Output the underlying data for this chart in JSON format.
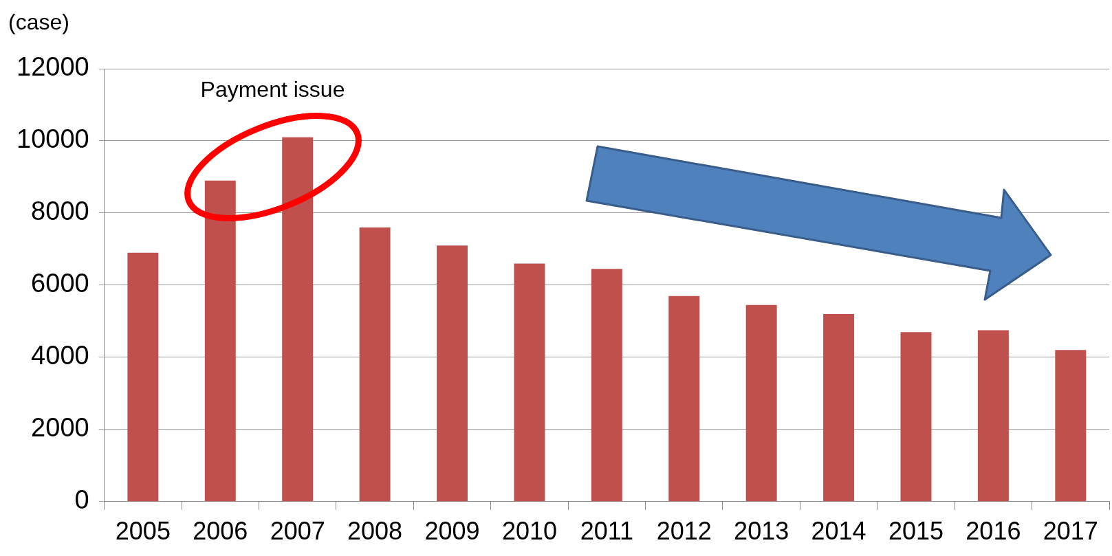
{
  "chart_data": {
    "type": "bar",
    "ylabel": "(case)",
    "annotations": [
      "Payment issue"
    ],
    "categories": [
      "2005",
      "2006",
      "2007",
      "2008",
      "2009",
      "2010",
      "2011",
      "2012",
      "2013",
      "2014",
      "2015",
      "2016",
      "2017"
    ],
    "values": [
      6900,
      8900,
      10100,
      7600,
      7100,
      6600,
      6450,
      5700,
      5450,
      5200,
      4700,
      4750,
      4200
    ],
    "color": "#c0504d",
    "ylim": [
      0,
      12000
    ],
    "yticks": [
      0,
      2000,
      4000,
      6000,
      8000,
      10000,
      12000
    ],
    "grid": "y",
    "legend": false
  }
}
